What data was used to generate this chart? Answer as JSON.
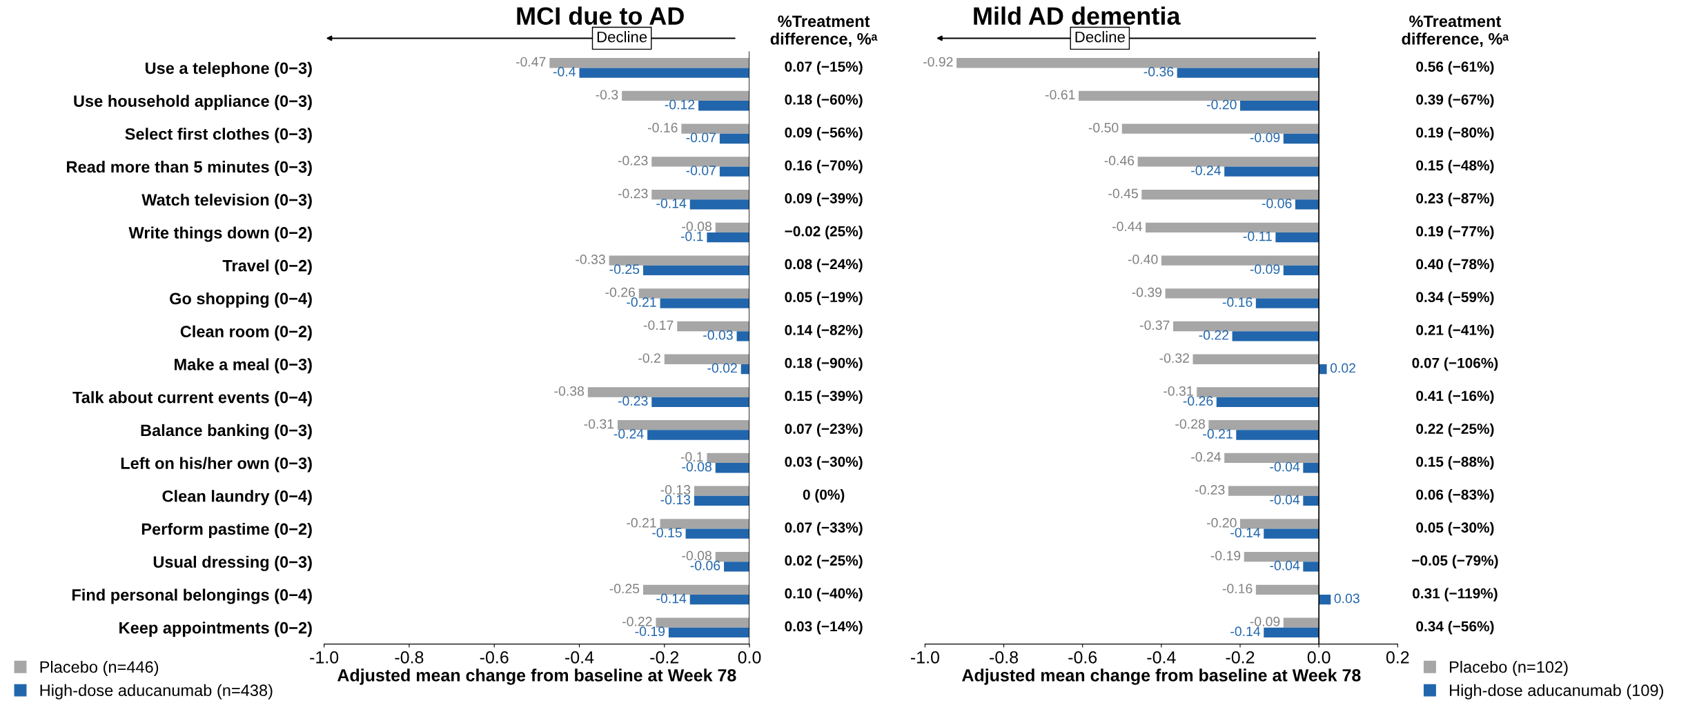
{
  "chart_data": [
    {
      "type": "bar",
      "orientation": "horizontal",
      "title": "MCI due to AD",
      "xlabel": "Adjusted mean change from baseline at Week 78",
      "categories": [
        "Use a telephone (0−3)",
        "Use household appliance (0−3)",
        "Select first clothes (0−3)",
        "Read more than 5 minutes (0−3)",
        "Watch television (0−3)",
        "Write things down (0−2)",
        "Travel (0−2)",
        "Go shopping (0−4)",
        "Clean room (0−2)",
        "Make a meal (0−3)",
        "Talk about current events (0−4)",
        "Balance banking (0−3)",
        "Left on his/her own (0−3)",
        "Clean laundry (0−4)",
        "Perform pastime (0−2)",
        "Usual dressing (0−3)",
        "Find personal belongings (0−4)",
        "Keep appointments (0−2)"
      ],
      "series": [
        {
          "name": "Placebo (n=446)",
          "color": "#a6a6a6",
          "values": [
            -0.47,
            -0.3,
            -0.16,
            -0.23,
            -0.23,
            -0.08,
            -0.33,
            -0.26,
            -0.17,
            -0.2,
            -0.38,
            -0.31,
            -0.1,
            -0.13,
            -0.21,
            -0.08,
            -0.25,
            -0.22
          ],
          "value_labels": [
            "-0.47",
            "-0.3",
            "-0.16",
            "-0.23",
            "-0.23",
            "-0.08",
            "-0.33",
            "-0.26",
            "-0.17",
            "-0.2",
            "-0.38",
            "-0.31",
            "-0.1",
            "-0.13",
            "-0.21",
            "-0.08",
            "-0.25",
            "-0.22"
          ]
        },
        {
          "name": "High-dose aducanumab (n=438)",
          "color": "#2166ac",
          "values": [
            -0.4,
            -0.12,
            -0.07,
            -0.07,
            -0.14,
            -0.1,
            -0.25,
            -0.21,
            -0.03,
            -0.02,
            -0.23,
            -0.24,
            -0.08,
            -0.13,
            -0.15,
            -0.06,
            -0.14,
            -0.19
          ],
          "value_labels": [
            "-0.4",
            "-0.12",
            "-0.07",
            "-0.07",
            "-0.14",
            "-0.1",
            "-0.25",
            "-0.21",
            "-0.03",
            "-0.02",
            "-0.23",
            "-0.24",
            "-0.08",
            "-0.13",
            "-0.15",
            "-0.06",
            "-0.14",
            "-0.19"
          ]
        }
      ],
      "xlim": [
        -1.0,
        0.0
      ],
      "xticks": [
        {
          "value": -1.0,
          "label": "-1.0"
        },
        {
          "value": -0.8,
          "label": "-0.8"
        },
        {
          "value": -0.6,
          "label": "-0.6"
        },
        {
          "value": -0.4,
          "label": "-0.4"
        },
        {
          "value": -0.2,
          "label": "-0.2"
        },
        {
          "value": 0.0,
          "label": "0.0"
        }
      ],
      "legend": "bottom left",
      "grid": false,
      "ref_lines": [
        {
          "axis": "x",
          "value": 0
        }
      ],
      "annotations": [
        "Decline",
        "%Treatment\ndifference, %ᵃ",
        "0.07 (−15%)",
        "0.18 (−60%)",
        "0.09 (−56%)",
        "0.16 (−70%)",
        "0.09 (−39%)",
        "−0.02 (25%)",
        "0.08 (−24%)",
        "0.05 (−19%)",
        "0.14 (−82%)",
        "0.18 (−90%)",
        "0.15 (−39%)",
        "0.07 (−23%)",
        "0.03 (−30%)",
        "0 (0%)",
        "0.07 (−33%)",
        "0.02 (−25%)",
        "0.10 (−40%)",
        "0.03 (−14%)"
      ]
    },
    {
      "type": "bar",
      "orientation": "horizontal",
      "title": "Mild AD dementia",
      "xlabel": "Adjusted mean change from baseline at Week 78",
      "categories": [
        null,
        null,
        null,
        null,
        null,
        null,
        null,
        null,
        null,
        null,
        null,
        null,
        null,
        null,
        null,
        null,
        null,
        null
      ],
      "series": [
        {
          "name": "Placebo (n=102)",
          "color": "#a6a6a6",
          "values": [
            -0.92,
            -0.61,
            -0.5,
            -0.46,
            -0.45,
            -0.44,
            -0.4,
            -0.39,
            -0.37,
            -0.32,
            -0.31,
            -0.28,
            -0.24,
            -0.23,
            -0.2,
            -0.19,
            -0.16,
            -0.09
          ],
          "value_labels": [
            "-0.92",
            "-0.61",
            "-0.50",
            "-0.46",
            "-0.45",
            "-0.44",
            "-0.40",
            "-0.39",
            "-0.37",
            "-0.32",
            "-0.31",
            "-0.28",
            "-0.24",
            "-0.23",
            "-0.20",
            "-0.19",
            "-0.16",
            "-0.09"
          ]
        },
        {
          "name": "High-dose aducanumab (109)",
          "color": "#2166ac",
          "values": [
            -0.36,
            -0.2,
            -0.09,
            -0.24,
            -0.06,
            -0.11,
            -0.09,
            -0.16,
            -0.22,
            0.02,
            -0.26,
            -0.21,
            -0.04,
            -0.04,
            -0.14,
            -0.04,
            0.03,
            -0.14
          ],
          "value_labels": [
            "-0.36",
            "-0.20",
            "-0.09",
            "-0.24",
            "-0.06",
            "-0.11",
            "-0.09",
            "-0.16",
            "-0.22",
            "0.02",
            "-0.26",
            "-0.21",
            "-0.04",
            "-0.04",
            "-0.14",
            "-0.04",
            "0.03",
            "-0.14"
          ]
        }
      ],
      "xlim": [
        -1.0,
        0.2
      ],
      "xticks": [
        {
          "value": -1.0,
          "label": "-1.0"
        },
        {
          "value": -0.8,
          "label": "-0.8"
        },
        {
          "value": -0.6,
          "label": "-0.6"
        },
        {
          "value": -0.4,
          "label": "-0.4"
        },
        {
          "value": -0.2,
          "label": "-0.2"
        },
        {
          "value": 0.0,
          "label": "0.0"
        },
        {
          "value": 0.2,
          "label": "0.2"
        }
      ],
      "legend": "bottom right",
      "grid": false,
      "ref_lines": [
        {
          "axis": "x",
          "value": 0
        }
      ],
      "annotations": [
        "Decline",
        "%Treatment\ndifference, %ᵃ",
        "0.56 (−61%)",
        "0.39 (−67%)",
        "0.19 (−80%)",
        "0.15 (−48%)",
        "0.23 (−87%)",
        "0.19 (−77%)",
        "0.40 (−78%)",
        "0.34 (−59%)",
        "0.21 (−41%)",
        "0.07 (−106%)",
        "0.41 (−16%)",
        "0.22 (−25%)",
        "0.15 (−88%)",
        "0.06 (−83%)",
        "0.05 (−30%)",
        "−0.05 (−79%)",
        "0.31 (−119%)",
        "0.34 (−56%)"
      ]
    }
  ]
}
